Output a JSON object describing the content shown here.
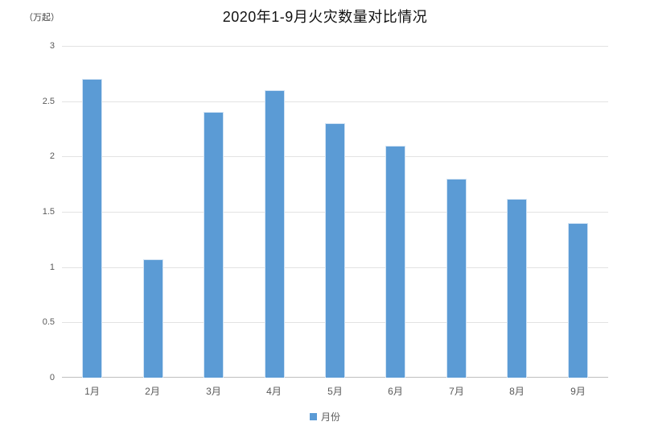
{
  "chart_data": {
    "type": "bar",
    "title": "2020年1-9月火灾数量对比情况",
    "unit_label": "（万起）",
    "categories": [
      "1月",
      "2月",
      "3月",
      "4月",
      "5月",
      "6月",
      "7月",
      "8月",
      "9月"
    ],
    "values": [
      2.7,
      1.07,
      2.4,
      2.6,
      2.3,
      2.1,
      1.8,
      1.62,
      1.4
    ],
    "series_name": "月份",
    "legend": [
      "月份"
    ],
    "legend_position": "bottom-center",
    "xlabel": "",
    "ylabel": "（万起）",
    "ylim": [
      0,
      3
    ],
    "yticks": [
      0,
      0.5,
      1,
      1.5,
      2,
      2.5,
      3
    ],
    "grid": "horizontal",
    "colors": {
      "bar": "#5B9BD5",
      "grid": "#e3e3e3",
      "axis": "#bfbfbf",
      "tick_text": "#595959",
      "title_text": "#111111"
    }
  }
}
